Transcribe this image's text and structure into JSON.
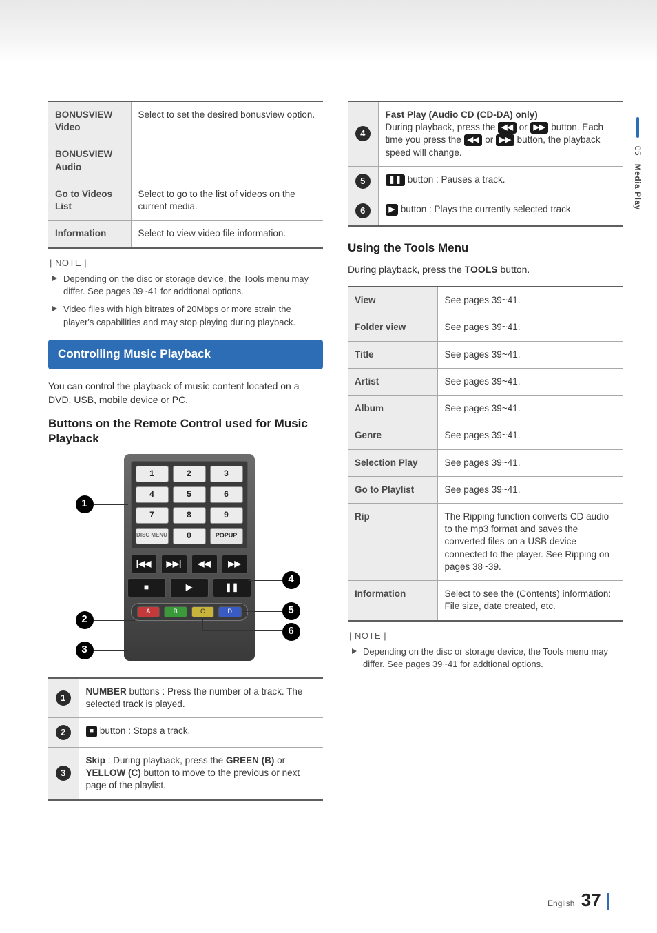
{
  "side": {
    "section_no": "05",
    "section_name": "Media Play"
  },
  "left_table1": {
    "rows": [
      {
        "label": "BONUSVIEW Video",
        "desc_span": true
      },
      {
        "label": "BONUSVIEW Audio",
        "desc": "Select to set the desired bonusview option."
      },
      {
        "label": "Go to Videos List",
        "desc": "Select to go to the list of videos on the current media."
      },
      {
        "label": "Information",
        "desc": "Select to view video file information."
      }
    ]
  },
  "left_notes": [
    "Depending on the disc or storage device, the Tools menu may differ. See pages 39~41 for addtional options.",
    "Video files with high bitrates of 20Mbps or more strain the player's capabilities and may stop playing during playback."
  ],
  "section_bar": "Controlling Music Playback",
  "lead_text": "You can control the playback of music content located on a DVD, USB, mobile device or PC.",
  "sub_heading": "Buttons on the Remote Control used for Music Playback",
  "keypad": {
    "row1": [
      "1",
      "2",
      "3"
    ],
    "row2": [
      "4",
      "5",
      "6"
    ],
    "row3": [
      "7",
      "8",
      "9"
    ],
    "row4": [
      "DISC MENU",
      "0",
      "POPUP"
    ]
  },
  "nav_glyphs": {
    "prev": "|◀◀",
    "next": "▶▶|",
    "rew": "◀◀",
    "ff": "▶▶"
  },
  "play_glyphs": {
    "stop": "■",
    "play": "▶",
    "pause": "❚❚"
  },
  "remote_table": {
    "items": [
      {
        "n": "1",
        "html": "<b>NUMBER</b> buttons : Press the number of a track. The selected track is played."
      },
      {
        "n": "2",
        "html": "<span class='icon-key'>■</span> button : Stops a track."
      },
      {
        "n": "3",
        "html": "<b>Skip</b> : During playback, press the <b>GREEN (B)</b> or <b>YELLOW (C)</b> button to move to the previous or next page of the playlist."
      }
    ]
  },
  "right_num_table": {
    "items": [
      {
        "n": "4",
        "html": "<b>Fast Play (Audio CD (CD-DA) only)</b><br>During playback, press the <span class='icon-key'>◀◀</span> or <span class='icon-key'>▶▶</span> button. Each time you press the <span class='icon-key'>◀◀</span> or <span class='icon-key'>▶▶</span> button, the playback speed will change."
      },
      {
        "n": "5",
        "html": "<span class='icon-key'>❚❚</span> button : Pauses a track."
      },
      {
        "n": "6",
        "html": "<span class='icon-key'>▶</span> button : Plays the currently selected track."
      }
    ]
  },
  "right_heading": "Using the Tools Menu",
  "right_lead": "During playback, press the TOOLS button.",
  "right_lead_bold": "TOOLS",
  "right_lead_prefix": "During playback, press the ",
  "right_lead_suffix": " button.",
  "tools_table": [
    {
      "label": "View",
      "desc": "See pages 39~41."
    },
    {
      "label": "Folder view",
      "desc": "See pages 39~41."
    },
    {
      "label": "Title",
      "desc": "See pages 39~41."
    },
    {
      "label": "Artist",
      "desc": "See pages 39~41."
    },
    {
      "label": "Album",
      "desc": "See pages 39~41."
    },
    {
      "label": "Genre",
      "desc": "See pages 39~41."
    },
    {
      "label": "Selection Play",
      "desc": "See pages 39~41."
    },
    {
      "label": "Go to Playlist",
      "desc": "See pages 39~41."
    },
    {
      "label": "Rip",
      "desc": "The Ripping function converts CD audio to the mp3 format and saves the converted files on a USB device connected to the player. See Ripping on pages 38~39."
    },
    {
      "label": "Information",
      "desc": "Select to see the (Contents) information: File size, date created, etc."
    }
  ],
  "right_notes": [
    "Depending on the disc or storage device, the Tools menu may differ. See pages 39~41 for addtional options."
  ],
  "footer": {
    "lang": "English",
    "page": "37"
  },
  "note_label": "| NOTE |"
}
